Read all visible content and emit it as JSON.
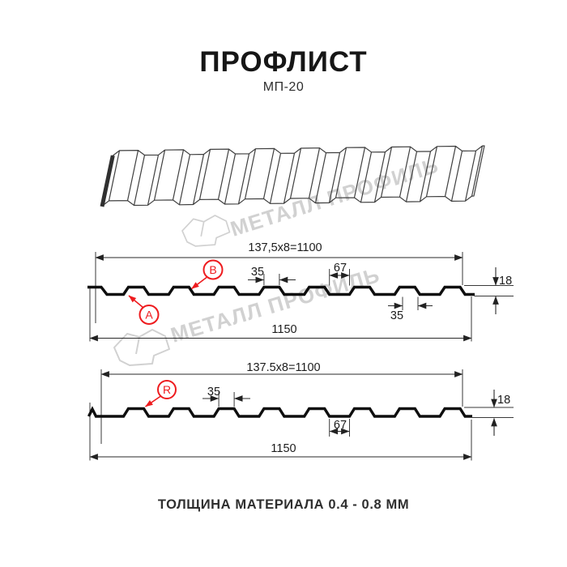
{
  "page": {
    "title": "ПРОФЛИСТ",
    "subtitle": "МП-20",
    "footer": "ТОЛЩИНА МАТЕРИАЛА 0.4 - 0.8 ММ"
  },
  "watermark": {
    "brand_text": "МЕТАЛЛ ПРОФИЛЬ"
  },
  "colors": {
    "accent_red": "#ee1b1e",
    "ink": "#1f1f1f",
    "watermark_gray": "#cfcfcf"
  },
  "profile_top": {
    "dim_width_formula": "137,5x8=1100",
    "dim_rib_top": "35",
    "dim_flat": "67",
    "dim_height": "18",
    "dim_rib_bottom": "35",
    "dim_total": "1150",
    "label_a": "А",
    "label_b": "В"
  },
  "profile_bottom": {
    "dim_width_formula": "137.5x8=1100",
    "dim_rib_top": "35",
    "dim_flat": "67",
    "dim_height": "18",
    "dim_total": "1150",
    "label_r": "R"
  }
}
